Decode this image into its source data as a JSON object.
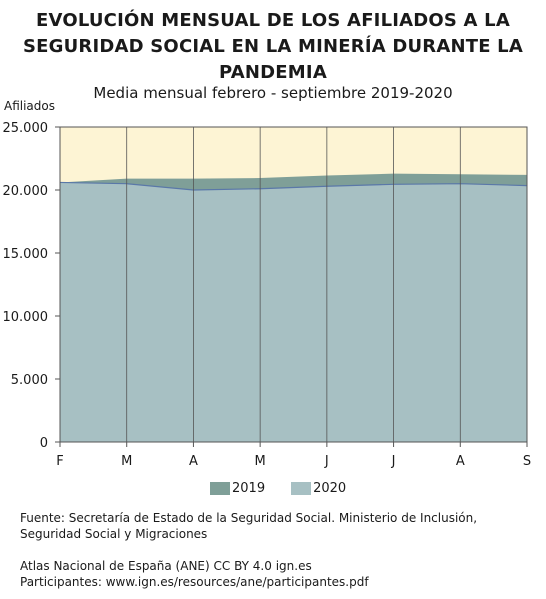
{
  "title_lines": [
    "EVOLUCIÓN MENSUAL DE LOS AFILIADOS A LA",
    "SEGURIDAD SOCIAL EN LA MINERÍA DURANTE LA",
    "PANDEMIA"
  ],
  "subtitle": "Media mensual febrero - septiembre 2019-2020",
  "source": {
    "line1": "Fuente: Secretaría de Estado de la Seguridad Social. Ministerio de Inclusión,",
    "line2": "Seguridad Social y Migraciones"
  },
  "credits": {
    "line1": "Atlas Nacional de España (ANE) CC BY 4.0 ign.es",
    "line2": "Participantes: www.ign.es/resources/ane/participantes.pdf"
  },
  "colors": {
    "plot_background": "#fdf4d4",
    "series_2019": "#7f9f98",
    "series_2020": "#a7c0c3",
    "line_2020": "#5a78a8",
    "grid": "#555555"
  },
  "chart_data": {
    "type": "area",
    "title": "EVOLUCIÓN MENSUAL DE LOS AFILIADOS A LA SEGURIDAD SOCIAL EN LA MINERÍA DURANTE LA PANDEMIA",
    "subtitle": "Media mensual febrero - septiembre 2019-2020",
    "ylabel": "Afiliados",
    "xlabel": "",
    "categories": [
      "F",
      "M",
      "A",
      "M",
      "J",
      "J",
      "A",
      "S"
    ],
    "ylim": [
      0,
      25000
    ],
    "yticks": [
      0,
      5000,
      10000,
      15000,
      20000,
      25000
    ],
    "ytick_labels": [
      "0",
      "5.000",
      "10.000",
      "15.000",
      "20.000",
      "25.000"
    ],
    "grid": "vertical",
    "legend_position": "bottom",
    "series": [
      {
        "name": "2019",
        "values": [
          20600,
          20900,
          20900,
          20950,
          21150,
          21300,
          21250,
          21200
        ]
      },
      {
        "name": "2020",
        "values": [
          20600,
          20500,
          20000,
          20100,
          20300,
          20450,
          20500,
          20350
        ]
      }
    ]
  }
}
